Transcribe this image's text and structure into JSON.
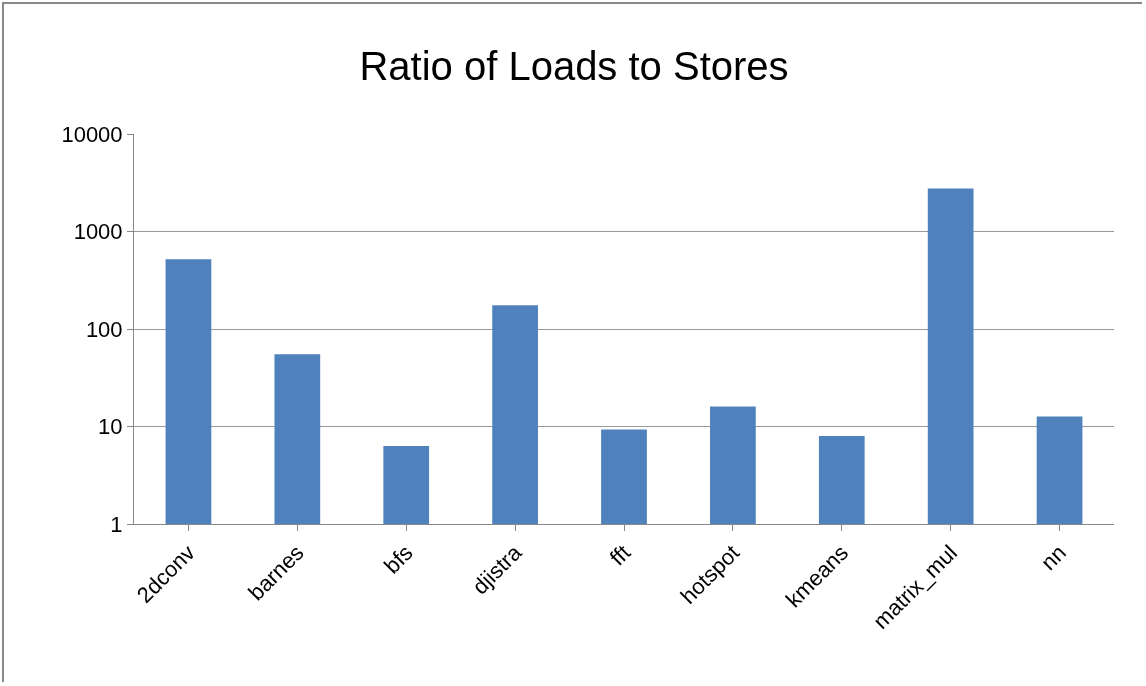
{
  "chart_data": {
    "type": "bar",
    "title": "Ratio of Loads to Stores",
    "categories": [
      "2dconv",
      "barnes",
      "bfs",
      "djistra",
      "fft",
      "hotspot",
      "kmeans",
      "matrix_mul",
      "nn"
    ],
    "values": [
      520,
      55,
      6.3,
      175,
      9.3,
      16,
      8,
      2760,
      12.7
    ],
    "color": "#4f81bd",
    "log": "y",
    "ylim": [
      1,
      10000
    ],
    "yticks": [
      1,
      10,
      100,
      1000,
      10000
    ],
    "grid": "y",
    "legend": false
  }
}
